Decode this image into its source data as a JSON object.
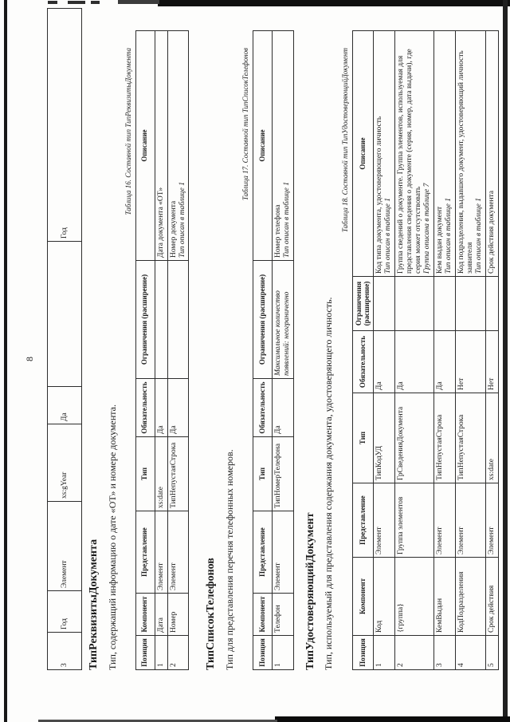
{
  "page_number": "8",
  "continuation_table": {
    "row": [
      "3",
      "Год",
      "Элемент",
      "xs:gYear",
      "Да",
      "",
      "Год"
    ]
  },
  "sections": [
    {
      "heading": "ТипРеквизитыДокумента",
      "intro": "Тип, содержащий информацию о дате «ОТ» и номере документа.",
      "caption": "Таблица 16. Составной тип ТипРеквизитыДокумента",
      "table": {
        "headers": [
          "Позиция",
          "Компонент",
          "Представление",
          "Тип",
          "Обязательность",
          "Ограничения (расширение)",
          "Описание"
        ],
        "rows": [
          {
            "cells": [
              "1",
              "Дата",
              "Элемент",
              "xs:date",
              "Да",
              ""
            ],
            "desc": "Дата документа «ОТ»",
            "desc_note": ""
          },
          {
            "cells": [
              "2",
              "Номер",
              "Элемент",
              "ТипНепустаяСтрока",
              "Да",
              ""
            ],
            "desc": "Номер документа",
            "desc_note": "Тип описан в таблице 1"
          }
        ]
      }
    },
    {
      "heading": "ТипСписокТелефонов",
      "intro": "Тип для представления перечня телефонных номеров.",
      "caption": "Таблица 17. Составной тип ТипСписокТелефонов",
      "table": {
        "headers": [
          "Позиция",
          "Компонент",
          "Представление",
          "Тип",
          "Обязательность",
          "Ограничения (расширение)",
          "Описание"
        ],
        "rows": [
          {
            "cells": [
              "1",
              "Телефон",
              "Элемент",
              "ТипНомерТелефона",
              "Да",
              "Максимальное количество появлений: неограниченно"
            ],
            "desc": "Номер телефона",
            "desc_note": "Тип описан в таблице 1"
          }
        ]
      }
    },
    {
      "heading": "ТипУдостоверяющийДокумент",
      "intro": "Тип, используемый для представления содержания документа, удостоверяющего личность.",
      "caption": "Таблица 18. Составной тип ТипУдостоверяющийДокумент",
      "table": {
        "headers": [
          "Позиция",
          "Компонент",
          "Представление",
          "Тип",
          "Обязательность",
          "Ограничения (расширение)",
          "Описание"
        ],
        "rows": [
          {
            "cells": [
              "1",
              "Код",
              "Элемент",
              "ТипКодУД",
              "Да",
              ""
            ],
            "desc": "Код типа документа, удостоверяющего личность",
            "desc_note": "Тип описан в таблице 1"
          },
          {
            "cells": [
              "2",
              "{группа}",
              "Группа элементов",
              "ГрСведенияДокумента",
              "Да",
              ""
            ],
            "desc": "Группа сведений о документе. Группа элементов, используемая для представления сведения о документе (серия, номер, дата выдачи), где серия может отсутствовать",
            "desc_note": "Группа описана в таблице 7"
          },
          {
            "cells": [
              "3",
              "КемВыдан",
              "Элемент",
              "ТипНепустаяСтрока",
              "Да",
              ""
            ],
            "desc": "Кем выдан документ",
            "desc_note": "Тип описан в таблице 1"
          },
          {
            "cells": [
              "4",
              "КодПодразделения",
              "Элемент",
              "ТипНепустаяСтрока",
              "Нет",
              ""
            ],
            "desc": "Код подразделения, выдавшего документ, удостоверяющий личность заявителя",
            "desc_note": "Тип описан в таблице 1"
          },
          {
            "cells": [
              "5",
              "Срок действия",
              "Элемент",
              "xs:date",
              "Нет",
              ""
            ],
            "desc": "Срок действия документа",
            "desc_note": ""
          }
        ]
      }
    }
  ]
}
